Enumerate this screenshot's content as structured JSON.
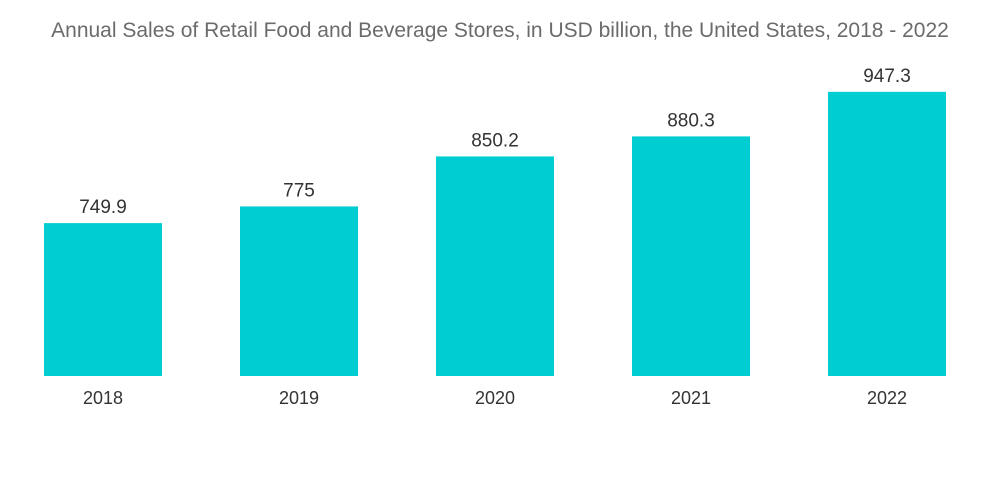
{
  "chart_data": {
    "type": "bar",
    "title": "Annual Sales of Retail Food and Beverage Stores, in USD billion, the United States, 2018 - 2022",
    "categories": [
      "2018",
      "2019",
      "2020",
      "2021",
      "2022"
    ],
    "values": [
      749.9,
      775,
      850.2,
      880.3,
      947.3
    ],
    "value_labels": [
      "749.9",
      "775",
      "850.2",
      "880.3",
      "947.3"
    ],
    "xlabel": "",
    "ylabel": "",
    "ylim": [
      0,
      1000
    ],
    "grid": false,
    "legend": "none",
    "bar_color": "#00cdd1"
  }
}
